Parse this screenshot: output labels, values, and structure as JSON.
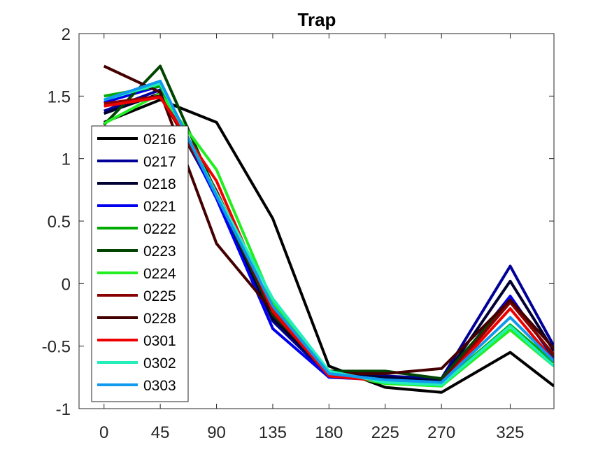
{
  "chart_data": {
    "type": "line",
    "title": "Trap",
    "xlabel": "",
    "ylabel": "",
    "x": [
      0,
      45,
      90,
      135,
      180,
      225,
      270,
      325,
      360
    ],
    "xlim": [
      -20,
      360
    ],
    "ylim": [
      -1,
      2
    ],
    "xticks": [
      0,
      45,
      90,
      135,
      180,
      225,
      270,
      325
    ],
    "xtick_labels": [
      "0",
      "45",
      "90",
      "135",
      "180",
      "225",
      "270",
      "325"
    ],
    "yticks": [
      -1,
      -0.5,
      0,
      0.5,
      1,
      1.5,
      2
    ],
    "ytick_labels": [
      "-1",
      "-0.5",
      "0",
      "0.5",
      "1",
      "1.5",
      "2"
    ],
    "grid": false,
    "legend_position": "left",
    "series": [
      {
        "name": "0216",
        "color": "#000000",
        "values": [
          1.29,
          1.47,
          1.29,
          0.52,
          -0.66,
          -0.83,
          -0.87,
          -0.55,
          -0.82
        ]
      },
      {
        "name": "0217",
        "color": "#000099",
        "values": [
          1.38,
          1.55,
          0.7,
          -0.3,
          -0.74,
          -0.74,
          -0.76,
          0.14,
          -0.5
        ]
      },
      {
        "name": "0218",
        "color": "#000033",
        "values": [
          1.36,
          1.52,
          0.7,
          -0.28,
          -0.72,
          -0.75,
          -0.78,
          0.02,
          -0.54
        ]
      },
      {
        "name": "0221",
        "color": "#0000ee",
        "values": [
          1.45,
          1.58,
          0.68,
          -0.36,
          -0.75,
          -0.77,
          -0.79,
          -0.1,
          -0.6
        ]
      },
      {
        "name": "0222",
        "color": "#00aa00",
        "values": [
          1.5,
          1.58,
          0.74,
          -0.2,
          -0.72,
          -0.78,
          -0.8,
          -0.33,
          -0.63
        ]
      },
      {
        "name": "0223",
        "color": "#004400",
        "values": [
          1.27,
          1.74,
          0.72,
          -0.25,
          -0.7,
          -0.7,
          -0.76,
          -0.13,
          -0.58
        ]
      },
      {
        "name": "0224",
        "color": "#22ee22",
        "values": [
          1.28,
          1.52,
          0.91,
          -0.15,
          -0.71,
          -0.8,
          -0.82,
          -0.37,
          -0.66
        ]
      },
      {
        "name": "0225",
        "color": "#880000",
        "values": [
          1.44,
          1.5,
          0.74,
          -0.23,
          -0.73,
          -0.78,
          -0.79,
          -0.15,
          -0.57
        ]
      },
      {
        "name": "0228",
        "color": "#440000",
        "values": [
          1.74,
          1.53,
          0.32,
          -0.22,
          -0.72,
          -0.72,
          -0.68,
          -0.13,
          -0.52
        ]
      },
      {
        "name": "0301",
        "color": "#ee0000",
        "values": [
          1.42,
          1.49,
          0.82,
          -0.22,
          -0.74,
          -0.78,
          -0.8,
          -0.2,
          -0.62
        ]
      },
      {
        "name": "0302",
        "color": "#22eebb",
        "values": [
          1.47,
          1.6,
          0.72,
          -0.12,
          -0.7,
          -0.79,
          -0.81,
          -0.34,
          -0.66
        ]
      },
      {
        "name": "0303",
        "color": "#1199ee",
        "values": [
          1.47,
          1.62,
          0.7,
          -0.18,
          -0.72,
          -0.77,
          -0.79,
          -0.27,
          -0.62
        ]
      }
    ]
  }
}
